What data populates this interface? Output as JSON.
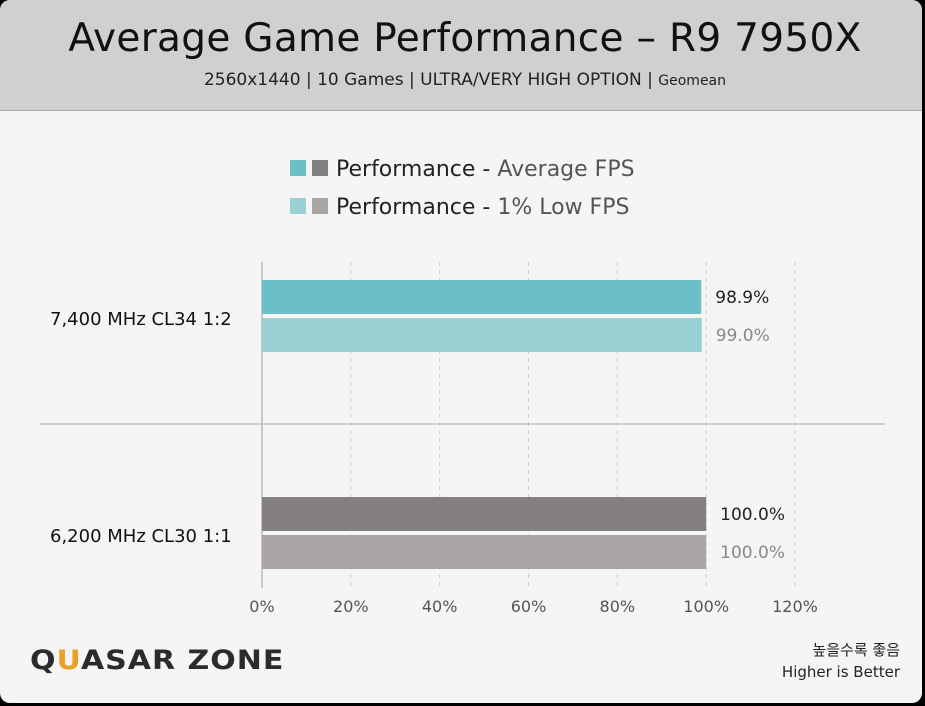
{
  "header": {
    "title": "Average Game Performance – R9 7950X",
    "subtitle_main": "2560x1440  |  10 Games  |  ULTRA/VERY HIGH OPTION  |",
    "subtitle_small": "Geomean"
  },
  "chart_data": {
    "type": "bar",
    "orientation": "horizontal",
    "categories": [
      "7,400 MHz CL34 1:2",
      "6,200 MHz CL30 1:1"
    ],
    "series": [
      {
        "name": "Performance - Average FPS",
        "values": [
          98.9,
          100.0
        ],
        "value_labels": [
          "98.9%",
          "100.0%"
        ],
        "colors": [
          "#6cbfc6",
          "#858080"
        ]
      },
      {
        "name": "Performance - 1% Low FPS",
        "values": [
          99.0,
          100.0
        ],
        "value_labels": [
          "99.0%",
          "100.0%"
        ],
        "colors": [
          "#98d0d4",
          "#a9a5a4"
        ]
      }
    ],
    "legend": [
      {
        "prefix": "Performance - ",
        "suffix": "Average FPS",
        "swatches": [
          "#6cbfc6",
          "#858080"
        ]
      },
      {
        "prefix": "Performance - ",
        "suffix": "1% Low FPS",
        "swatches": [
          "#98d0d4",
          "#a9a5a4"
        ]
      }
    ],
    "xlim": [
      0,
      120
    ],
    "xticks": [
      "0%",
      "20%",
      "40%",
      "60%",
      "80%",
      "100%",
      "120%"
    ],
    "grid": "vertical dashed",
    "legend_position": "top-center"
  },
  "footer": {
    "logo_parts": [
      "Q",
      "U",
      "ASAR ZONE"
    ],
    "note_korean": "높을수록 좋음",
    "note_english": "Higher is Better"
  }
}
